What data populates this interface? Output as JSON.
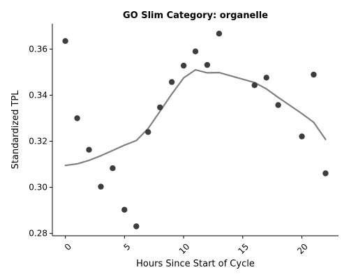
{
  "chart_data": {
    "type": "scatter",
    "title": "GO Slim Category: organelle",
    "xlabel": "Hours Since Start of Cycle",
    "ylabel": "Standardized TPL",
    "xlim": [
      -1.1,
      23.1
    ],
    "ylim": [
      0.279,
      0.371
    ],
    "xticks": [
      0,
      5,
      10,
      15,
      20
    ],
    "xtick_labels": [
      "0",
      "5",
      "10",
      "15",
      "20"
    ],
    "yticks": [
      0.28,
      0.3,
      0.32,
      0.34,
      0.36
    ],
    "ytick_labels": [
      "0.28",
      "0.30",
      "0.32",
      "0.34",
      "0.36"
    ],
    "grid": false,
    "points": {
      "color": "#333333",
      "x": [
        0,
        1,
        2,
        3,
        4,
        5,
        6,
        7,
        8,
        9,
        10,
        11,
        12,
        13,
        16,
        17,
        18,
        20,
        21,
        22
      ],
      "y": [
        0.3635,
        0.33,
        0.3163,
        0.3003,
        0.3083,
        0.2903,
        0.2831,
        0.324,
        0.3347,
        0.3457,
        0.3528,
        0.359,
        0.3531,
        0.3667,
        0.3443,
        0.3476,
        0.3357,
        0.3221,
        0.3489,
        0.3061
      ]
    },
    "trend": {
      "color": "#808080",
      "x": [
        0,
        1,
        2,
        3,
        4,
        5,
        6,
        7,
        8,
        9,
        10,
        11,
        12,
        13,
        16,
        17,
        18,
        20,
        21,
        22
      ],
      "y": [
        0.3095,
        0.3102,
        0.3117,
        0.3137,
        0.316,
        0.3183,
        0.3203,
        0.3255,
        0.333,
        0.3405,
        0.3475,
        0.351,
        0.3497,
        0.3498,
        0.3455,
        0.3427,
        0.339,
        0.332,
        0.3282,
        0.3208
      ]
    }
  }
}
